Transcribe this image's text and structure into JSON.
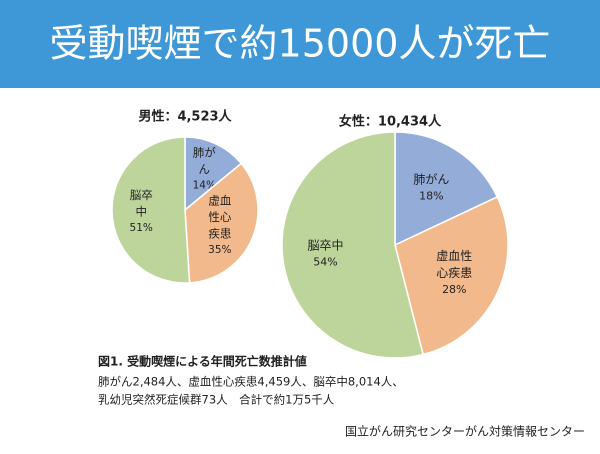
{
  "header": {
    "title": "受動喫煙で約15000人が死亡"
  },
  "chart_data": [
    {
      "type": "pie",
      "title": "男性：4,523人",
      "categories": [
        "肺がん",
        "虚血性心疾患",
        "脳卒中"
      ],
      "values": [
        14,
        35,
        51
      ],
      "value_labels": [
        "14%",
        "35%",
        "51%"
      ],
      "colors": [
        "#94acd8",
        "#f2b98c",
        "#bdd59a"
      ]
    },
    {
      "type": "pie",
      "title": "女性：10,434人",
      "categories": [
        "肺がん",
        "虚血性心疾患",
        "脳卒中"
      ],
      "values": [
        18,
        28,
        54
      ],
      "value_labels": [
        "18%",
        "28%",
        "54%"
      ],
      "colors": [
        "#94acd8",
        "#f2b98c",
        "#bdd59a"
      ]
    }
  ],
  "caption": {
    "title": "図1. 受動喫煙による年間死亡数推計値",
    "lines": [
      "肺がん2,484人、虚血性心疾患4,459人、脳卒中8,014人、",
      "乳幼児突然死症候群73人　合計で約1万5千人"
    ]
  },
  "source": "国立がん研究センターがん対策情報センター"
}
